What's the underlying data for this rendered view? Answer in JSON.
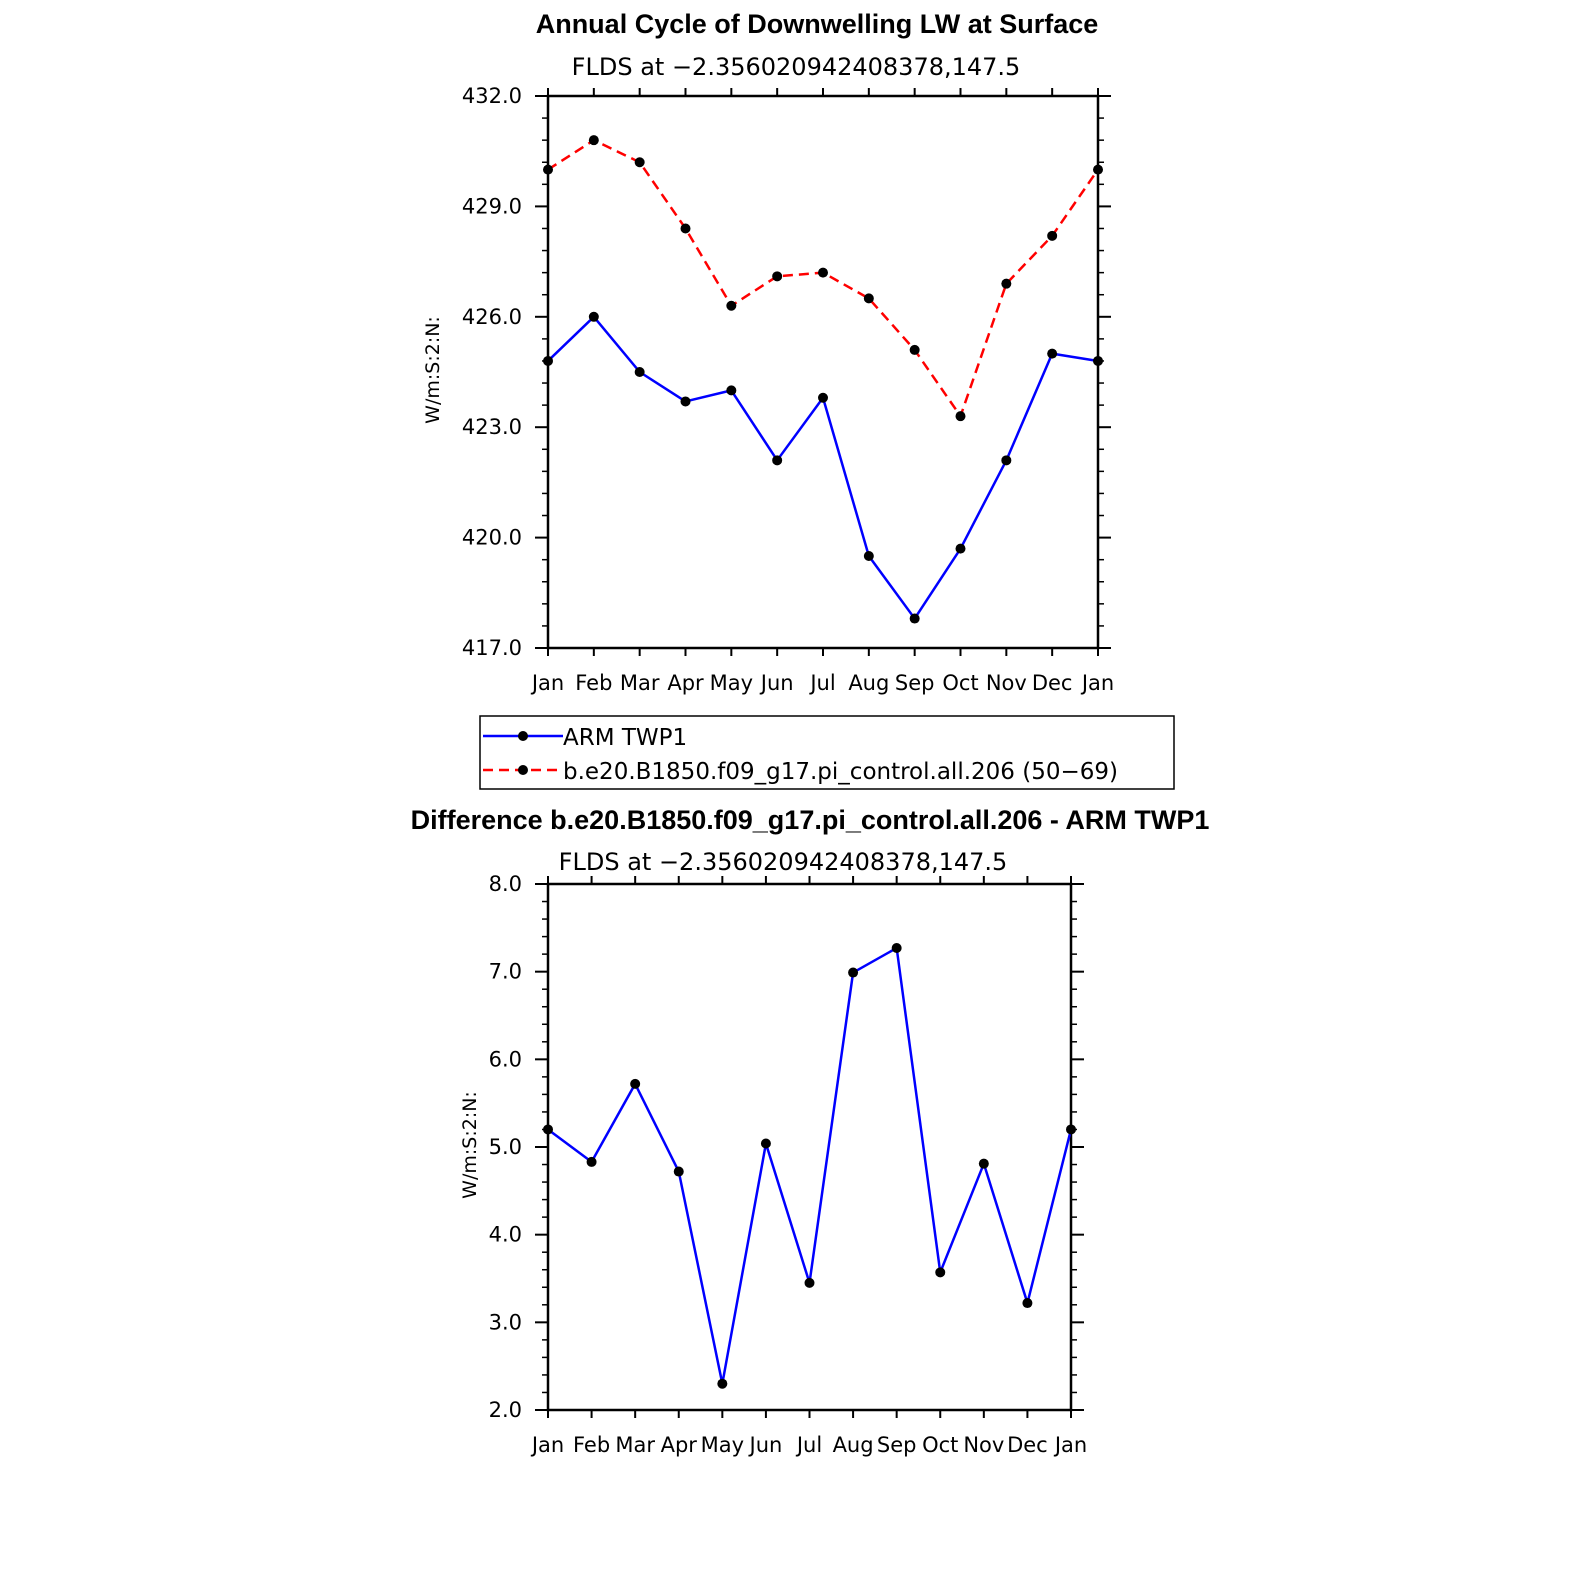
{
  "chart_data": [
    {
      "type": "line",
      "title": "Annual Cycle of Downwelling LW at Surface",
      "subtitle": "FLDS at −2.356020942408378,147.5",
      "ylabel": "W/m:S:2:N:",
      "xlabel": "",
      "categories": [
        "Jan",
        "Feb",
        "Mar",
        "Apr",
        "May",
        "Jun",
        "Jul",
        "Aug",
        "Sep",
        "Oct",
        "Nov",
        "Dec",
        "Jan"
      ],
      "ylim": [
        417.0,
        432.0
      ],
      "yticks": [
        "417.0",
        "420.0",
        "423.0",
        "426.0",
        "429.0",
        "432.0"
      ],
      "ytick_values": [
        417,
        420,
        423,
        426,
        429,
        432
      ],
      "grid": false,
      "legend_position": "below",
      "series": [
        {
          "name": "ARM TWP1",
          "color": "#0000ff",
          "dash": "solid",
          "values": [
            424.8,
            426.0,
            424.5,
            423.7,
            424.0,
            422.1,
            423.8,
            419.5,
            417.8,
            419.7,
            422.1,
            425.0,
            424.8
          ]
        },
        {
          "name": "b.e20.B1850.f09_g17.pi_control.all.206 (50−69)",
          "color": "#ff0000",
          "dash": "dashed",
          "values": [
            430.0,
            430.8,
            430.2,
            428.4,
            426.3,
            427.1,
            427.2,
            426.5,
            425.1,
            423.3,
            426.9,
            428.2,
            430.0
          ]
        }
      ]
    },
    {
      "type": "line",
      "title": "Difference b.e20.B1850.f09_g17.pi_control.all.206 - ARM TWP1",
      "subtitle": "FLDS at −2.356020942408378,147.5",
      "ylabel": "W/m:S:2:N:",
      "xlabel": "",
      "categories": [
        "Jan",
        "Feb",
        "Mar",
        "Apr",
        "May",
        "Jun",
        "Jul",
        "Aug",
        "Sep",
        "Oct",
        "Nov",
        "Dec",
        "Jan"
      ],
      "ylim": [
        2.0,
        8.0
      ],
      "yticks": [
        "2.0",
        "3.0",
        "4.0",
        "5.0",
        "6.0",
        "7.0",
        "8.0"
      ],
      "ytick_values": [
        2,
        3,
        4,
        5,
        6,
        7,
        8
      ],
      "grid": false,
      "series": [
        {
          "color": "#0000ff",
          "dash": "solid",
          "values": [
            5.2,
            4.83,
            5.72,
            4.72,
            2.3,
            5.04,
            3.45,
            6.99,
            7.27,
            3.57,
            4.81,
            3.22,
            5.2
          ]
        }
      ]
    }
  ]
}
